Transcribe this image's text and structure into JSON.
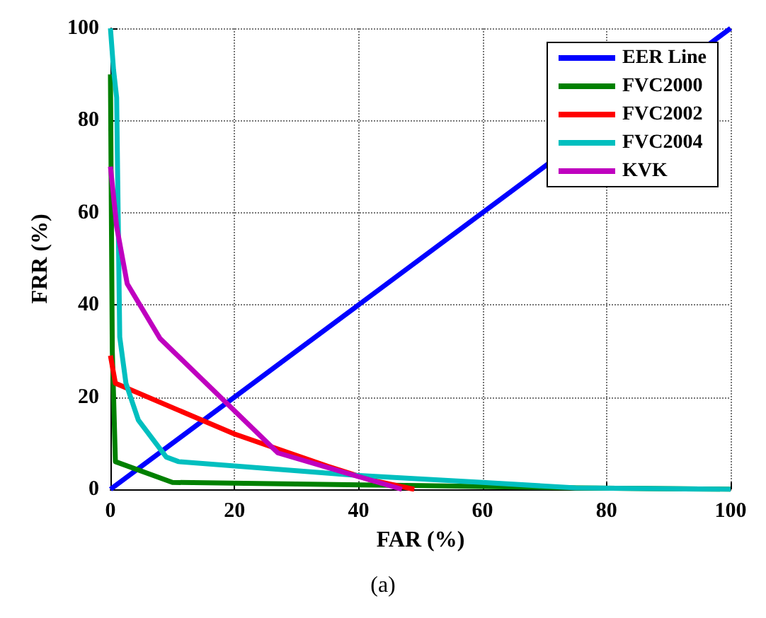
{
  "chart_data": {
    "type": "line",
    "xlabel": "FAR (%)",
    "ylabel": "FRR (%)",
    "annotations": [
      "(a)"
    ],
    "xlim": [
      0,
      100
    ],
    "ylim": [
      0,
      100
    ],
    "xticks": [
      0,
      20,
      40,
      60,
      80,
      100
    ],
    "yticks": [
      0,
      20,
      40,
      60,
      80,
      100
    ],
    "grid": true,
    "legend": "top right",
    "marker": "none",
    "line_style": "solid",
    "series": [
      {
        "name": "EER Line",
        "color": "#0000ff",
        "x": [
          0,
          100
        ],
        "values": [
          0,
          100
        ]
      },
      {
        "name": "FVC2000",
        "color": "#008000",
        "x": [
          0,
          0.3,
          0.8,
          10,
          50,
          75,
          100
        ],
        "values": [
          90,
          30,
          6,
          1.5,
          0.8,
          0.3,
          0
        ]
      },
      {
        "name": "FVC2002",
        "color": "#ff0000",
        "x": [
          0,
          0.8,
          20,
          35,
          42,
          49
        ],
        "values": [
          29,
          23,
          12,
          5,
          2,
          0
        ]
      },
      {
        "name": "FVC2004",
        "color": "#00bfbf",
        "x": [
          0,
          0.5,
          1,
          1.5,
          2.5,
          4.5,
          9,
          11,
          40,
          60,
          75,
          100
        ],
        "values": [
          100,
          91,
          85,
          33,
          23,
          15,
          7,
          6,
          3,
          1.5,
          0.3,
          0
        ]
      },
      {
        "name": "KVK",
        "color": "#bf00bf",
        "x": [
          0,
          1,
          2.7,
          8,
          27,
          47
        ],
        "values": [
          70,
          57,
          44.6,
          32.7,
          7.9,
          0
        ]
      }
    ]
  }
}
